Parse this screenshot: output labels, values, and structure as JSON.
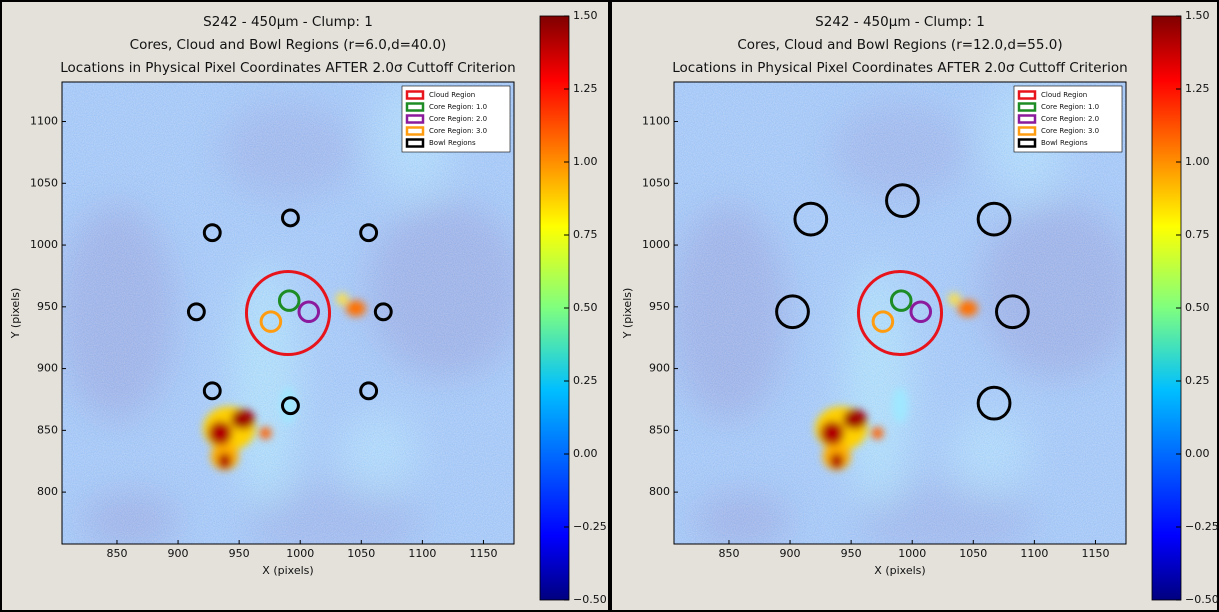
{
  "chart_data": [
    {
      "type": "scatter",
      "title": "S242 - 450μm - Clump: 1",
      "subtitle": "Cores, Cloud and Bowl Regions (r=6.0,d=40.0)",
      "caption": "Locations in Physical Pixel Coordinates AFTER 2.0σ Cuttoff Criterion",
      "x_label": "X (pixels)",
      "y_label": "Y (pixels)",
      "xlim": [
        805,
        1175
      ],
      "xticks": [
        850,
        900,
        950,
        1000,
        1050,
        1100,
        1150
      ],
      "ylim": [
        758,
        1132
      ],
      "yticks": [
        800,
        850,
        900,
        950,
        1000,
        1050,
        1100
      ],
      "colorbar_lim": [
        -0.5,
        1.5
      ],
      "colorbar_ticks": [
        {
          "value": -0.5,
          "label": "−0.50"
        },
        {
          "value": -0.25,
          "label": "−0.25"
        },
        {
          "value": 0,
          "label": "0.00"
        },
        {
          "value": 0.25,
          "label": "0.25"
        },
        {
          "value": 0.5,
          "label": "0.50"
        },
        {
          "value": 0.75,
          "label": "0.75"
        },
        {
          "value": 1,
          "label": "1.00"
        },
        {
          "value": 1.25,
          "label": "1.25"
        },
        {
          "value": 1.5,
          "label": "1.50"
        }
      ],
      "legend": "upper right",
      "series": [
        {
          "name": "Cloud Region",
          "color": "#e8141c",
          "x": [
            990
          ],
          "values": [
            945
          ],
          "sizes": [
            34
          ]
        },
        {
          "name": "Core Region: 1.0",
          "color": "#1e8c24",
          "x": [
            991
          ],
          "values": [
            955
          ],
          "sizes": [
            8
          ]
        },
        {
          "name": "Core Region: 2.0",
          "color": "#8b1a9c",
          "x": [
            1007
          ],
          "values": [
            946
          ],
          "sizes": [
            8
          ]
        },
        {
          "name": "Core Region: 3.0",
          "color": "#ff9c10",
          "x": [
            976
          ],
          "values": [
            938
          ],
          "sizes": [
            8
          ]
        },
        {
          "name": "Bowl Regions",
          "color": "#000000",
          "x": [
            928,
            992,
            1056,
            915,
            1068,
            928,
            992,
            1056
          ],
          "values": [
            1010,
            1022,
            1010,
            946,
            946,
            882,
            870,
            882
          ],
          "sizes": [
            6.5,
            6.5,
            6.5,
            6.5,
            6.5,
            6.5,
            6.5,
            6.5
          ]
        }
      ]
    },
    {
      "type": "scatter",
      "title": "S242 - 450μm - Clump: 1",
      "subtitle": "Cores, Cloud and Bowl Regions (r=12.0,d=55.0)",
      "caption": "Locations in Physical Pixel Coordinates AFTER 2.0σ Cuttoff Criterion",
      "x_label": "X (pixels)",
      "y_label": "Y (pixels)",
      "xlim": [
        805,
        1175
      ],
      "xticks": [
        850,
        900,
        950,
        1000,
        1050,
        1100,
        1150
      ],
      "ylim": [
        758,
        1132
      ],
      "yticks": [
        800,
        850,
        900,
        950,
        1000,
        1050,
        1100
      ],
      "colorbar_lim": [
        -0.5,
        1.5
      ],
      "colorbar_ticks": [
        {
          "value": -0.5,
          "label": "−0.50"
        },
        {
          "value": -0.25,
          "label": "−0.25"
        },
        {
          "value": 0,
          "label": "0.00"
        },
        {
          "value": 0.25,
          "label": "0.25"
        },
        {
          "value": 0.5,
          "label": "0.50"
        },
        {
          "value": 0.75,
          "label": "0.75"
        },
        {
          "value": 1,
          "label": "1.00"
        },
        {
          "value": 1.25,
          "label": "1.25"
        },
        {
          "value": 1.5,
          "label": "1.50"
        }
      ],
      "legend": "upper right",
      "series": [
        {
          "name": "Cloud Region",
          "color": "#e8141c",
          "x": [
            990
          ],
          "values": [
            945
          ],
          "sizes": [
            34
          ]
        },
        {
          "name": "Core Region: 1.0",
          "color": "#1e8c24",
          "x": [
            991
          ],
          "values": [
            955
          ],
          "sizes": [
            8
          ]
        },
        {
          "name": "Core Region: 2.0",
          "color": "#8b1a9c",
          "x": [
            1007
          ],
          "values": [
            946
          ],
          "sizes": [
            8
          ]
        },
        {
          "name": "Core Region: 3.0",
          "color": "#ff9c10",
          "x": [
            976
          ],
          "values": [
            938
          ],
          "sizes": [
            8
          ]
        },
        {
          "name": "Bowl Regions",
          "color": "#000000",
          "x": [
            917,
            992,
            1067,
            902,
            1082,
            1067
          ],
          "values": [
            1021,
            1036,
            1021,
            946,
            946,
            872
          ],
          "sizes": [
            13,
            13,
            13,
            13,
            13,
            13
          ]
        }
      ]
    }
  ]
}
